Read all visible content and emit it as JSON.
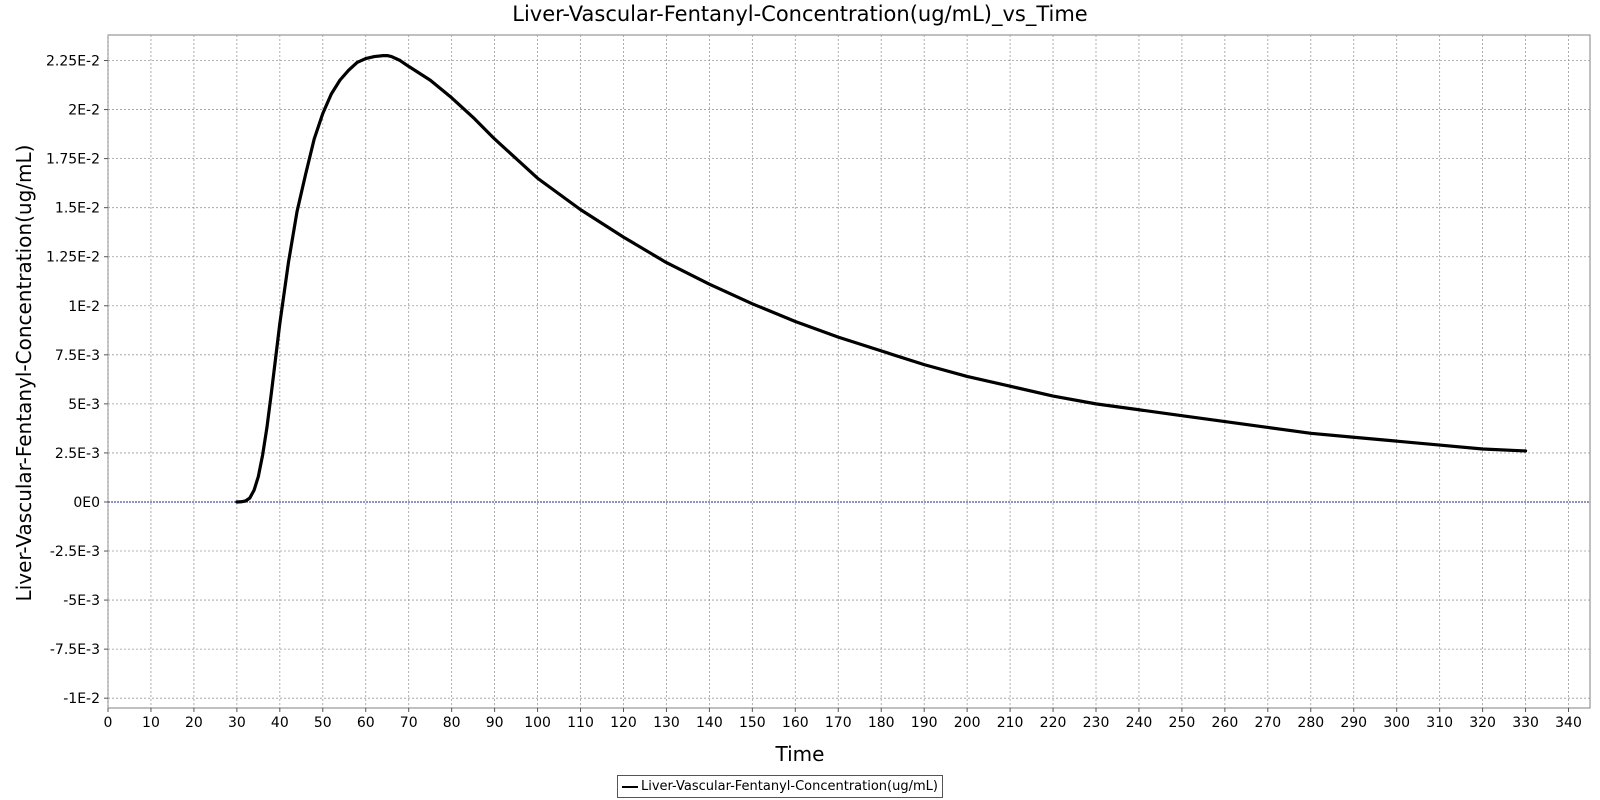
{
  "chart_data": {
    "type": "line",
    "title": "Liver-Vascular-Fentanyl-Concentration(ug/mL)_vs_Time",
    "xlabel": "Time",
    "ylabel": "Liver-Vascular-Fentanyl-Concentration(ug/mL)",
    "xlim": [
      0,
      345
    ],
    "ylim": [
      -0.0105,
      0.0238
    ],
    "x_ticks": [
      0,
      10,
      20,
      30,
      40,
      50,
      60,
      70,
      80,
      90,
      100,
      110,
      120,
      130,
      140,
      150,
      160,
      170,
      180,
      190,
      200,
      210,
      220,
      230,
      240,
      250,
      260,
      270,
      280,
      290,
      300,
      310,
      320,
      330,
      340
    ],
    "y_ticks": [
      {
        "value": 0.0225,
        "label": "2.25E-2"
      },
      {
        "value": 0.02,
        "label": "2E-2"
      },
      {
        "value": 0.0175,
        "label": "1.75E-2"
      },
      {
        "value": 0.015,
        "label": "1.5E-2"
      },
      {
        "value": 0.0125,
        "label": "1.25E-2"
      },
      {
        "value": 0.01,
        "label": "1E-2"
      },
      {
        "value": 0.0075,
        "label": "7.5E-3"
      },
      {
        "value": 0.005,
        "label": "5E-3"
      },
      {
        "value": 0.0025,
        "label": "2.5E-3"
      },
      {
        "value": 0,
        "label": "0E0"
      },
      {
        "value": -0.0025,
        "label": "-2.5E-3"
      },
      {
        "value": -0.005,
        "label": "-5E-3"
      },
      {
        "value": -0.0075,
        "label": "-7.5E-3"
      },
      {
        "value": -0.01,
        "label": "-1E-2"
      }
    ],
    "grid": true,
    "legend_position": "bottom-center",
    "colors": {
      "line": "#000000",
      "grid": "#9a9a9a",
      "zero_line": "#1f2a8a"
    },
    "series": [
      {
        "name": "Liver-Vascular-Fentanyl-Concentration(ug/mL)",
        "x": [
          30,
          31,
          32,
          33,
          34,
          35,
          36,
          37,
          38,
          39,
          40,
          42,
          44,
          46,
          48,
          50,
          52,
          54,
          56,
          58,
          60,
          62,
          64,
          65,
          66,
          68,
          70,
          75,
          80,
          85,
          90,
          95,
          100,
          110,
          120,
          130,
          140,
          150,
          160,
          170,
          180,
          190,
          200,
          210,
          220,
          230,
          240,
          250,
          260,
          270,
          280,
          290,
          300,
          310,
          320,
          330
        ],
        "y": [
          0,
          1e-05,
          5e-05,
          0.0002,
          0.0006,
          0.0013,
          0.0024,
          0.0038,
          0.0055,
          0.0073,
          0.0091,
          0.0122,
          0.0148,
          0.0167,
          0.0185,
          0.0198,
          0.0208,
          0.0215,
          0.022,
          0.0224,
          0.0226,
          0.0227,
          0.02275,
          0.02275,
          0.0227,
          0.0225,
          0.0222,
          0.0215,
          0.0206,
          0.0196,
          0.0185,
          0.0175,
          0.0165,
          0.0149,
          0.0135,
          0.0122,
          0.0111,
          0.0101,
          0.0092,
          0.0084,
          0.0077,
          0.007,
          0.0064,
          0.0059,
          0.0054,
          0.005,
          0.0047,
          0.0044,
          0.0041,
          0.0038,
          0.0035,
          0.0033,
          0.0031,
          0.0029,
          0.0027,
          0.0026
        ]
      }
    ]
  }
}
